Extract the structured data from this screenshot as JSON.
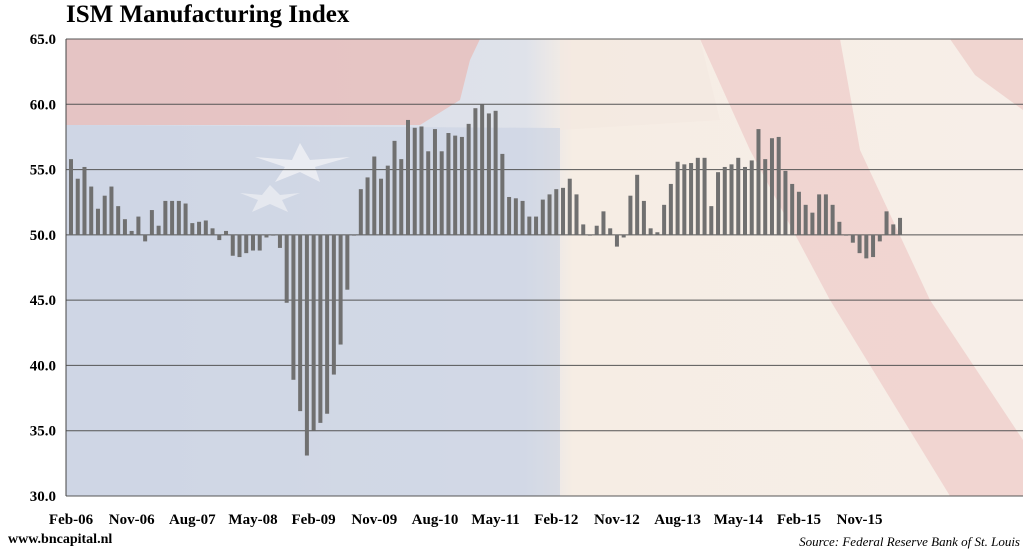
{
  "chart_data": {
    "type": "bar",
    "title": "ISM Manufacturing Index",
    "baseline": 50,
    "ylim": [
      30,
      65
    ],
    "yticks": [
      "30.0",
      "35.0",
      "40.0",
      "45.0",
      "50.0",
      "55.0",
      "60.0",
      "65.0"
    ],
    "xtick_labels": [
      "Feb-06",
      "Nov-06",
      "Aug-07",
      "May-08",
      "Feb-09",
      "Nov-09",
      "Aug-10",
      "May-11",
      "Feb-12",
      "Nov-12",
      "Aug-13",
      "May-14",
      "Feb-15",
      "Nov-15"
    ],
    "grid": true,
    "series": [
      {
        "values": [
          55.8,
          54.3,
          55.2,
          53.7,
          52.0,
          53.0,
          53.7,
          52.2,
          51.2,
          50.3,
          51.4,
          49.5,
          51.9,
          50.7,
          52.6,
          52.6,
          52.6,
          52.4,
          50.9,
          51.0,
          51.1,
          50.5,
          49.6,
          50.3,
          48.4,
          48.3,
          48.6,
          48.8,
          48.8,
          49.8,
          50.0,
          49.0,
          44.8,
          38.9,
          36.5,
          33.1,
          35.0,
          35.6,
          36.3,
          39.3,
          41.6,
          45.8,
          50.0,
          53.5,
          54.4,
          56.0,
          54.3,
          55.3,
          57.2,
          55.8,
          58.8,
          58.2,
          58.3,
          56.4,
          58.1,
          56.4,
          57.8,
          57.6,
          57.5,
          58.5,
          59.7,
          60.0,
          59.3,
          59.5,
          56.2,
          52.9,
          52.8,
          52.6,
          51.4,
          51.4,
          52.7,
          53.1,
          53.5,
          53.6,
          54.3,
          53.1,
          50.8,
          50.0,
          50.7,
          51.8,
          50.5,
          49.1,
          49.8,
          53.0,
          54.6,
          52.6,
          50.5,
          50.2,
          52.3,
          53.9,
          55.6,
          55.4,
          55.5,
          55.9,
          55.9,
          52.2,
          54.8,
          55.2,
          55.4,
          55.9,
          55.2,
          55.7,
          58.1,
          55.8,
          57.4,
          57.5,
          54.9,
          53.9,
          53.3,
          52.3,
          51.7,
          53.1,
          53.1,
          52.3,
          51.0,
          50.0,
          49.4,
          48.6,
          48.2,
          48.3,
          49.5,
          51.8,
          50.8,
          51.3
        ]
      }
    ]
  },
  "footer": {
    "left": "www.bncapital.nl",
    "right": "Source: Federal Reserve Bank of St. Louis"
  }
}
